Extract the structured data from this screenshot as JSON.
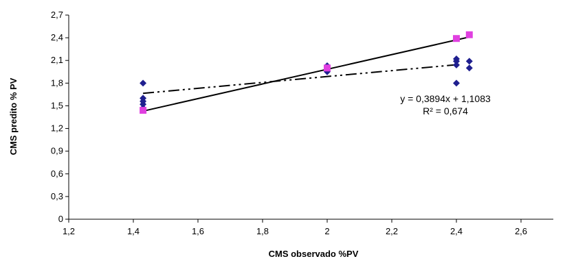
{
  "chart_data": {
    "type": "scatter",
    "xlabel": "CMS observado %PV",
    "ylabel": "CMS predito % PV",
    "xlim": [
      1.2,
      2.7
    ],
    "ylim": [
      0,
      2.7
    ],
    "x_ticks": [
      "1,2",
      "1,4",
      "1,6",
      "1,8",
      "2",
      "2,2",
      "2,4",
      "2,6"
    ],
    "y_ticks": [
      "0",
      "0,3",
      "0,6",
      "0,9",
      "1,2",
      "1,5",
      "1,8",
      "2,1",
      "2,4",
      "2,7"
    ],
    "grid": false,
    "series": [
      {
        "marker": "diamond",
        "color": "#1f1f8f",
        "points": [
          [
            1.43,
            1.8
          ],
          [
            1.43,
            1.6
          ],
          [
            1.43,
            1.56
          ],
          [
            1.43,
            1.52
          ],
          [
            1.43,
            1.47
          ],
          [
            2.0,
            2.03
          ],
          [
            2.0,
            1.98
          ],
          [
            2.0,
            1.95
          ],
          [
            2.4,
            2.12
          ],
          [
            2.4,
            2.09
          ],
          [
            2.4,
            2.04
          ],
          [
            2.4,
            1.8
          ],
          [
            2.44,
            2.09
          ],
          [
            2.44,
            2.0
          ]
        ]
      },
      {
        "marker": "square",
        "color": "#e040e0",
        "points": [
          [
            1.43,
            1.44
          ],
          [
            2.0,
            2.0
          ],
          [
            2.4,
            2.39
          ],
          [
            2.44,
            2.44
          ]
        ]
      }
    ],
    "lines": [
      {
        "style": "solid",
        "color": "#000000",
        "from": [
          1.43,
          1.43
        ],
        "to": [
          2.44,
          2.41
        ]
      },
      {
        "style": "dash-dot-dot",
        "color": "#000000",
        "from": [
          1.43,
          1.665
        ],
        "to": [
          2.4,
          2.043
        ]
      }
    ],
    "annotations": [
      "y = 0,3894x + 1,1083",
      "R² = 0,674"
    ]
  }
}
